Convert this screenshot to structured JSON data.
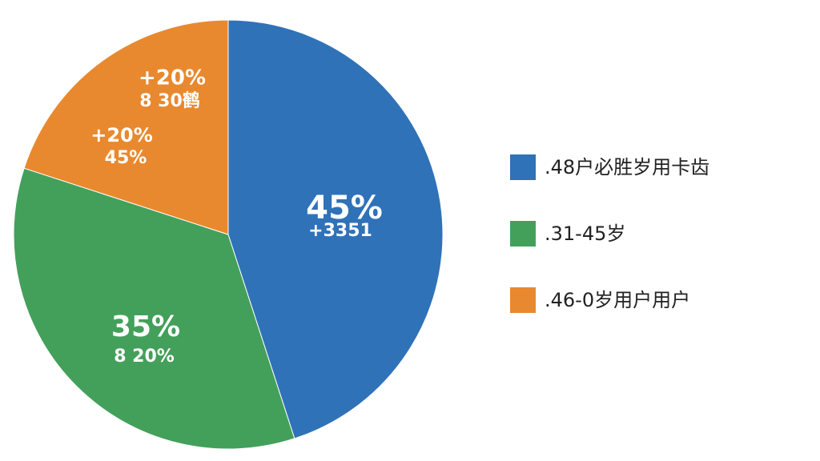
{
  "chart_data": {
    "type": "pie",
    "categories": [
      ".48户必胜岁用卡齿",
      ".31-45岁",
      ".46-0岁用户用户"
    ],
    "values": [
      45,
      35,
      20
    ],
    "value_labels": [
      "45%",
      "35%",
      "+20%"
    ],
    "colors": [
      "#2f72b8",
      "#43a05a",
      "#e8892f"
    ],
    "annotations": [
      "+3351",
      "8 20%",
      "8 30鹤",
      "+20%",
      "45%"
    ]
  }
}
